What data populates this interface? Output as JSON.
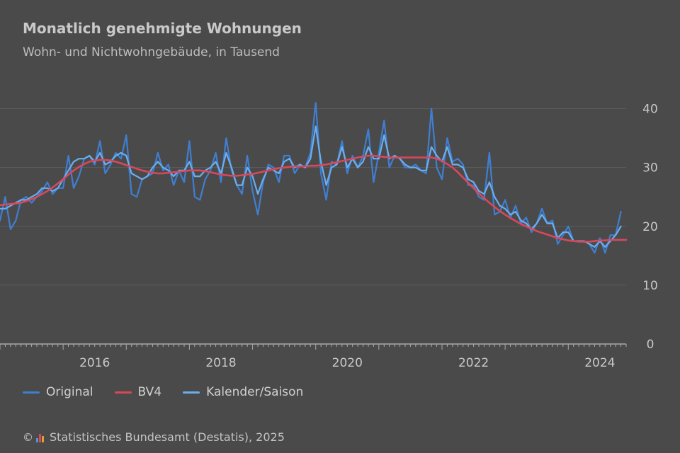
{
  "header": {
    "title": "Monatlich genehmigte Wohnungen",
    "subtitle": "Wohn- und Nichtwohngebäude, in Tausend"
  },
  "legend": [
    {
      "label": "Original",
      "color": "#3f7fd1"
    },
    {
      "label": "BV4",
      "color": "#d9485a"
    },
    {
      "label": "Kalender/Saison",
      "color": "#6aaef0"
    }
  ],
  "footer": {
    "copyright_symbol": "©",
    "source": "Statistisches Bundesamt (Destatis), 2025"
  },
  "chart_data": {
    "type": "line",
    "title": "Monatlich genehmigte Wohnungen",
    "subtitle": "Wohn- und Nichtwohngebäude, in Tausend",
    "x_range": [
      "2015-01",
      "2024-12"
    ],
    "x_ticks": [
      "2016",
      "2018",
      "2020",
      "2022",
      "2024"
    ],
    "y_ticks": [
      0,
      10,
      20,
      30,
      40
    ],
    "ylim": [
      0,
      45
    ],
    "grid": "horizontal",
    "y_axis_position": "right",
    "legend_position": "bottom-left",
    "series": [
      {
        "name": "Original",
        "color": "#3f7fd1",
        "interval": "monthly",
        "start": "2015-01",
        "values": [
          21,
          25,
          19.5,
          21,
          24.5,
          25,
          24,
          25,
          26,
          27.5,
          25.5,
          26.5,
          26.5,
          32,
          26.5,
          28.5,
          31.5,
          32,
          30.5,
          34.5,
          29,
          30.5,
          32.5,
          31.5,
          35.5,
          25.5,
          25,
          28,
          28.5,
          29,
          32.5,
          29.5,
          30.5,
          27,
          29.5,
          27.5,
          34.5,
          25,
          24.5,
          28,
          29.5,
          32.5,
          27.5,
          35,
          29.5,
          27,
          25.5,
          32,
          26,
          22,
          27.5,
          30.5,
          30,
          27.5,
          32,
          32,
          29,
          30.5,
          30,
          32.5,
          41,
          29,
          24.5,
          31,
          30.5,
          34.5,
          29,
          32,
          30,
          32,
          36.5,
          27.5,
          32.5,
          38,
          30,
          32,
          31.5,
          30,
          30,
          30.5,
          29.5,
          29,
          40,
          30,
          28,
          35,
          31,
          31.5,
          30.5,
          27,
          27,
          25,
          24.5,
          32.5,
          22,
          22.5,
          24.5,
          21.5,
          23.5,
          20.5,
          21.5,
          19,
          20.5,
          23,
          20.5,
          21,
          17,
          18.5,
          20,
          17.5,
          17.5,
          17.5,
          17,
          15.5,
          18,
          15.5,
          18.5,
          18.5,
          22.5
        ]
      },
      {
        "name": "BV4",
        "color": "#d9485a",
        "interval": "monthly",
        "start": "2015-01",
        "values": [
          23.6,
          23.7,
          23.8,
          23.9,
          24.0,
          24.3,
          24.6,
          25.0,
          25.5,
          26.0,
          26.6,
          27.3,
          28.0,
          28.8,
          29.5,
          30.1,
          30.6,
          31.0,
          31.2,
          31.3,
          31.3,
          31.2,
          31.0,
          30.7,
          30.4,
          30.1,
          29.8,
          29.5,
          29.3,
          29.1,
          29.0,
          29.0,
          29.1,
          29.2,
          29.3,
          29.4,
          29.5,
          29.5,
          29.5,
          29.4,
          29.2,
          29.0,
          28.8,
          28.7,
          28.6,
          28.6,
          28.7,
          28.8,
          28.9,
          29.1,
          29.3,
          29.5,
          29.7,
          29.9,
          30.0,
          30.1,
          30.2,
          30.2,
          30.2,
          30.3,
          30.3,
          30.4,
          30.5,
          30.7,
          30.9,
          31.1,
          31.3,
          31.5,
          31.7,
          31.9,
          32.0,
          32.0,
          31.9,
          31.8,
          31.7,
          31.7,
          31.7,
          31.7,
          31.7,
          31.7,
          31.7,
          31.7,
          31.7,
          31.5,
          31.1,
          30.6,
          30.0,
          29.2,
          28.3,
          27.4,
          26.5,
          25.6,
          24.8,
          24.0,
          23.3,
          22.6,
          22.0,
          21.4,
          20.9,
          20.4,
          20.0,
          19.6,
          19.2,
          18.9,
          18.6,
          18.3,
          18.0,
          17.8,
          17.6,
          17.5,
          17.4,
          17.4,
          17.4,
          17.5,
          17.6,
          17.6,
          17.7,
          17.7,
          17.7,
          17.7
        ]
      },
      {
        "name": "Kalender/Saison",
        "color": "#6aaef0",
        "interval": "monthly",
        "start": "2015-01",
        "values": [
          23,
          23,
          23.5,
          24,
          24.5,
          24.5,
          25,
          25.5,
          26.5,
          26.5,
          26,
          26.5,
          28,
          29.5,
          31,
          31.5,
          31.5,
          32,
          31,
          32.5,
          30.5,
          31,
          32,
          32.5,
          32,
          29,
          28.5,
          28,
          28.5,
          30,
          31,
          30,
          29.5,
          28.5,
          29.5,
          29.5,
          31,
          28.5,
          28.5,
          29.5,
          30,
          31,
          29,
          32.5,
          30,
          27,
          27,
          30,
          28.5,
          25.5,
          28,
          30,
          29.5,
          29,
          31,
          31.5,
          30,
          30.5,
          30,
          31.5,
          37,
          31,
          27,
          30,
          30.5,
          33.5,
          30,
          31.5,
          30,
          31,
          33.5,
          31.5,
          31.5,
          35.5,
          31.5,
          32,
          31.5,
          30.5,
          30,
          30,
          29.5,
          29.5,
          33.5,
          32,
          31,
          33.5,
          30.5,
          30.5,
          30,
          28,
          27.5,
          26,
          25.5,
          27.5,
          25,
          23.5,
          23,
          22,
          22.5,
          21,
          20.5,
          19.5,
          20.5,
          22,
          20.5,
          20.5,
          18,
          19,
          19,
          17.5,
          17.5,
          17.5,
          17,
          16.5,
          17.5,
          16.5,
          17.5,
          18.5,
          20
        ]
      }
    ]
  }
}
